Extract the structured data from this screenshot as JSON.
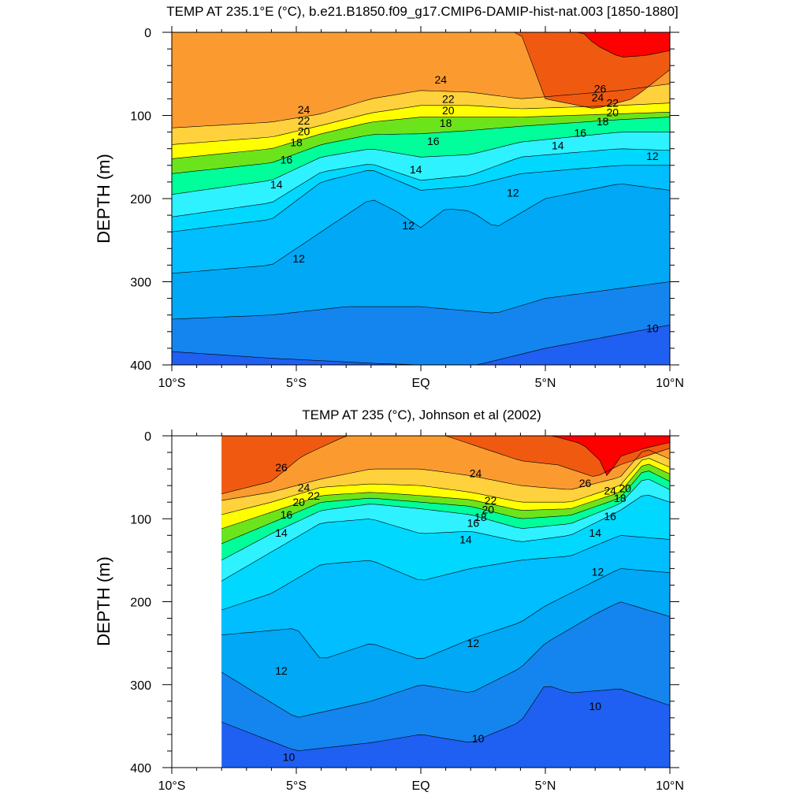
{
  "chart_data": [
    {
      "type": "contour",
      "title": "TEMP AT 235.1°E (°C), b.e21.B1850.f09_g17.CMIP6-DAMIP-hist-nat.003 [1850-1880]",
      "ylabel": "DEPTH (m)",
      "xlabel": "",
      "x_ticks": [
        "10°S",
        "5°S",
        "EQ",
        "5°N",
        "10°N"
      ],
      "y_ticks": [
        "0",
        "100",
        "200",
        "300",
        "400"
      ],
      "xlim": [
        -10,
        10
      ],
      "ylim": [
        400,
        0
      ],
      "data_xlim": [
        -10,
        10
      ],
      "contour_levels": [
        9,
        10,
        11,
        12,
        13,
        14,
        15,
        16,
        17,
        18,
        19,
        20,
        21,
        22,
        23,
        24,
        25,
        26,
        27
      ],
      "isotherms": [
        {
          "level": 10,
          "x": [
            -10,
            -6,
            -2,
            2,
            5,
            10
          ],
          "depth": [
            384,
            392,
            398,
            402,
            380,
            352
          ]
        },
        {
          "level": 11,
          "x": [
            -10,
            -6,
            -3,
            0,
            3,
            5,
            10
          ],
          "depth": [
            345,
            340,
            330,
            330,
            338,
            320,
            300
          ]
        },
        {
          "level": 12,
          "x": [
            -10,
            -6,
            -4,
            -2,
            -1,
            0,
            1,
            2,
            3,
            5,
            8,
            10
          ],
          "depth": [
            290,
            280,
            240,
            200,
            215,
            235,
            212,
            215,
            235,
            200,
            182,
            190
          ]
        },
        {
          "level": 13,
          "x": [
            -10,
            -6,
            -4,
            -2,
            0,
            2,
            4,
            8,
            10
          ],
          "depth": [
            240,
            225,
            180,
            165,
            190,
            185,
            170,
            160,
            160
          ]
        },
        {
          "level": 14,
          "x": [
            -10,
            -6,
            -4,
            -2,
            0,
            2,
            4,
            8,
            10
          ],
          "depth": [
            222,
            205,
            168,
            158,
            178,
            172,
            150,
            140,
            142
          ]
        },
        {
          "level": 16,
          "x": [
            -10,
            -6,
            -4,
            -2,
            0,
            2,
            4,
            8,
            10
          ],
          "depth": [
            195,
            178,
            150,
            140,
            150,
            147,
            132,
            120,
            120
          ]
        },
        {
          "level": 18,
          "x": [
            -10,
            -6,
            -4,
            -2,
            0,
            2,
            4,
            8,
            10
          ],
          "depth": [
            170,
            157,
            135,
            123,
            122,
            118,
            113,
            105,
            102
          ]
        },
        {
          "level": 20,
          "x": [
            -10,
            -6,
            -4,
            -2,
            0,
            2,
            4,
            8,
            10
          ],
          "depth": [
            152,
            140,
            122,
            108,
            102,
            102,
            102,
            98,
            96
          ]
        },
        {
          "level": 22,
          "x": [
            -10,
            -6,
            -4,
            -2,
            0,
            2,
            4,
            8,
            10
          ],
          "depth": [
            135,
            126,
            112,
            97,
            88,
            88,
            92,
            88,
            85
          ]
        },
        {
          "level": 24,
          "x": [
            -10,
            -6,
            -4,
            -2,
            0,
            2,
            4,
            8,
            10
          ],
          "depth": [
            115,
            108,
            98,
            80,
            70,
            72,
            80,
            70,
            62
          ]
        },
        {
          "level": 26,
          "x": [
            4,
            5,
            7,
            8.5,
            10
          ],
          "depth": [
            0,
            80,
            92,
            80,
            45
          ]
        },
        {
          "level": 27,
          "x": [
            6.5,
            7,
            8,
            9,
            10
          ],
          "depth": [
            0,
            15,
            30,
            28,
            22
          ]
        }
      ],
      "contour_labels": [
        {
          "text": "24",
          "x": -4.7,
          "depth": 93
        },
        {
          "text": "22",
          "x": -4.7,
          "depth": 106
        },
        {
          "text": "20",
          "x": -4.7,
          "depth": 119
        },
        {
          "text": "18",
          "x": -5.0,
          "depth": 132
        },
        {
          "text": "16",
          "x": -5.4,
          "depth": 153
        },
        {
          "text": "14",
          "x": -5.8,
          "depth": 183
        },
        {
          "text": "12",
          "x": -4.9,
          "depth": 272
        },
        {
          "text": "24",
          "x": 0.8,
          "depth": 57
        },
        {
          "text": "22",
          "x": 1.1,
          "depth": 80
        },
        {
          "text": "20",
          "x": 1.1,
          "depth": 94
        },
        {
          "text": "18",
          "x": 1.0,
          "depth": 109
        },
        {
          "text": "16",
          "x": 0.5,
          "depth": 131
        },
        {
          "text": "14",
          "x": -0.2,
          "depth": 165
        },
        {
          "text": "12",
          "x": -0.5,
          "depth": 232
        },
        {
          "text": "12",
          "x": 3.7,
          "depth": 193
        },
        {
          "text": "14",
          "x": 5.5,
          "depth": 136
        },
        {
          "text": "16",
          "x": 6.4,
          "depth": 121
        },
        {
          "text": "18",
          "x": 7.3,
          "depth": 107
        },
        {
          "text": "20",
          "x": 7.7,
          "depth": 96
        },
        {
          "text": "22",
          "x": 7.7,
          "depth": 85
        },
        {
          "text": "24",
          "x": 7.1,
          "depth": 78
        },
        {
          "text": "26",
          "x": 7.2,
          "depth": 68
        },
        {
          "text": "12",
          "x": 9.3,
          "depth": 149
        },
        {
          "text": "10",
          "x": 9.3,
          "depth": 356
        }
      ]
    },
    {
      "type": "contour",
      "title": "TEMP AT 235 (°C), Johnson et al (2002)",
      "ylabel": "DEPTH (m)",
      "xlabel": "",
      "x_ticks": [
        "10°S",
        "5°S",
        "EQ",
        "5°N",
        "10°N"
      ],
      "y_ticks": [
        "0",
        "100",
        "200",
        "300",
        "400"
      ],
      "xlim": [
        -10,
        10
      ],
      "ylim": [
        400,
        0
      ],
      "data_xlim": [
        -8,
        10
      ],
      "contour_levels": [
        9,
        10,
        11,
        12,
        13,
        14,
        15,
        16,
        17,
        18,
        19,
        20,
        21,
        22,
        23,
        24,
        25,
        26,
        27
      ],
      "isotherms": [
        {
          "level": 10,
          "x": [
            -8,
            -5,
            -2,
            0,
            2,
            4,
            5,
            6,
            8,
            10
          ],
          "depth": [
            345,
            380,
            370,
            360,
            370,
            345,
            300,
            310,
            305,
            325
          ]
        },
        {
          "level": 11,
          "x": [
            -8,
            -5,
            -2,
            0,
            2,
            4,
            5,
            7,
            8,
            10
          ],
          "depth": [
            285,
            340,
            320,
            300,
            310,
            280,
            250,
            215,
            200,
            218
          ]
        },
        {
          "level": 12,
          "x": [
            -8,
            -5,
            -4,
            -2,
            0,
            2,
            4,
            5,
            7,
            8,
            10
          ],
          "depth": [
            240,
            232,
            270,
            250,
            270,
            245,
            225,
            205,
            175,
            160,
            165
          ]
        },
        {
          "level": 13,
          "x": [
            -8,
            -6,
            -4,
            -2,
            0,
            2,
            4,
            6,
            8,
            10
          ],
          "depth": [
            210,
            190,
            155,
            150,
            175,
            160,
            150,
            145,
            120,
            125
          ]
        },
        {
          "level": 14,
          "x": [
            -8,
            -6,
            -4,
            -2,
            0,
            2,
            4,
            6,
            8,
            9,
            10
          ],
          "depth": [
            175,
            140,
            105,
            100,
            118,
            115,
            128,
            120,
            90,
            70,
            80
          ]
        },
        {
          "level": 16,
          "x": [
            -8,
            -6,
            -4,
            -2,
            0,
            2,
            4,
            6,
            8,
            9,
            10
          ],
          "depth": [
            150,
            118,
            90,
            82,
            88,
            95,
            112,
            106,
            82,
            50,
            65
          ]
        },
        {
          "level": 18,
          "x": [
            -8,
            -6,
            -4,
            -2,
            0,
            2,
            4,
            6,
            8,
            9,
            10
          ],
          "depth": [
            130,
            105,
            80,
            75,
            80,
            85,
            100,
            96,
            75,
            40,
            55
          ]
        },
        {
          "level": 20,
          "x": [
            -8,
            -6,
            -4,
            -2,
            0,
            2,
            4,
            6,
            8,
            9,
            10
          ],
          "depth": [
            112,
            92,
            72,
            68,
            72,
            77,
            90,
            88,
            68,
            32,
            46
          ]
        },
        {
          "level": 22,
          "x": [
            -8,
            -6,
            -4,
            -2,
            0,
            2,
            4,
            6,
            8,
            9,
            10
          ],
          "depth": [
            95,
            80,
            62,
            58,
            60,
            68,
            80,
            80,
            60,
            25,
            38
          ]
        },
        {
          "level": 24,
          "x": [
            -8,
            -6,
            -4,
            -2,
            0,
            2,
            4,
            6,
            8,
            9,
            10
          ],
          "depth": [
            78,
            68,
            52,
            40,
            40,
            48,
            60,
            65,
            50,
            15,
            28
          ]
        },
        {
          "level": 26,
          "x": [
            -8,
            -6,
            -4.8,
            -3,
            1,
            4,
            5.5,
            7,
            8,
            10
          ],
          "depth": [
            70,
            55,
            25,
            0,
            0,
            30,
            35,
            50,
            35,
            15
          ]
        },
        {
          "level": 27,
          "x": [
            5.3,
            6.5,
            7.2,
            7.5,
            8,
            9,
            10
          ],
          "depth": [
            0,
            10,
            30,
            50,
            25,
            15,
            8
          ]
        }
      ],
      "contour_labels": [
        {
          "text": "26",
          "x": -5.6,
          "depth": 38
        },
        {
          "text": "24",
          "x": -4.7,
          "depth": 62
        },
        {
          "text": "22",
          "x": -4.3,
          "depth": 72
        },
        {
          "text": "20",
          "x": -4.9,
          "depth": 80
        },
        {
          "text": "16",
          "x": -5.4,
          "depth": 95
        },
        {
          "text": "14",
          "x": -5.6,
          "depth": 117
        },
        {
          "text": "12",
          "x": -5.6,
          "depth": 283
        },
        {
          "text": "10",
          "x": -5.3,
          "depth": 387
        },
        {
          "text": "24",
          "x": 2.2,
          "depth": 45
        },
        {
          "text": "22",
          "x": 2.8,
          "depth": 78
        },
        {
          "text": "20",
          "x": 2.7,
          "depth": 89
        },
        {
          "text": "18",
          "x": 2.4,
          "depth": 98
        },
        {
          "text": "16",
          "x": 2.1,
          "depth": 105
        },
        {
          "text": "14",
          "x": 1.8,
          "depth": 125
        },
        {
          "text": "12",
          "x": 2.1,
          "depth": 250
        },
        {
          "text": "10",
          "x": 2.3,
          "depth": 365
        },
        {
          "text": "26",
          "x": 6.6,
          "depth": 57
        },
        {
          "text": "24",
          "x": 7.6,
          "depth": 66
        },
        {
          "text": "20",
          "x": 8.2,
          "depth": 63
        },
        {
          "text": "18",
          "x": 8.0,
          "depth": 75
        },
        {
          "text": "16",
          "x": 7.6,
          "depth": 97
        },
        {
          "text": "14",
          "x": 7.0,
          "depth": 117
        },
        {
          "text": "12",
          "x": 7.1,
          "depth": 164
        },
        {
          "text": "10",
          "x": 7.0,
          "depth": 326
        }
      ]
    }
  ],
  "colors": {
    "fill_9": "#1f5ff2",
    "fill_10": "#1485ee",
    "fill_11": "#00a8f5",
    "fill_12": "#00beff",
    "fill_13": "#00d8ff",
    "fill_14": "#2ef2ff",
    "fill_15": "#2dffd8",
    "fill_16": "#00ff9a",
    "fill_17": "#26f04a",
    "fill_18": "#6ce41c",
    "fill_19": "#d3ee12",
    "fill_20": "#ffff00",
    "fill_21": "#ffef3a",
    "fill_22": "#ffd13d",
    "fill_23": "#ffb431",
    "fill_24": "#fb9b2f",
    "fill_25": "#f58c17",
    "fill_26": "#f05a10",
    "fill_27": "#ff0000",
    "contour_line": "#000000",
    "missing": "#ffffff"
  }
}
